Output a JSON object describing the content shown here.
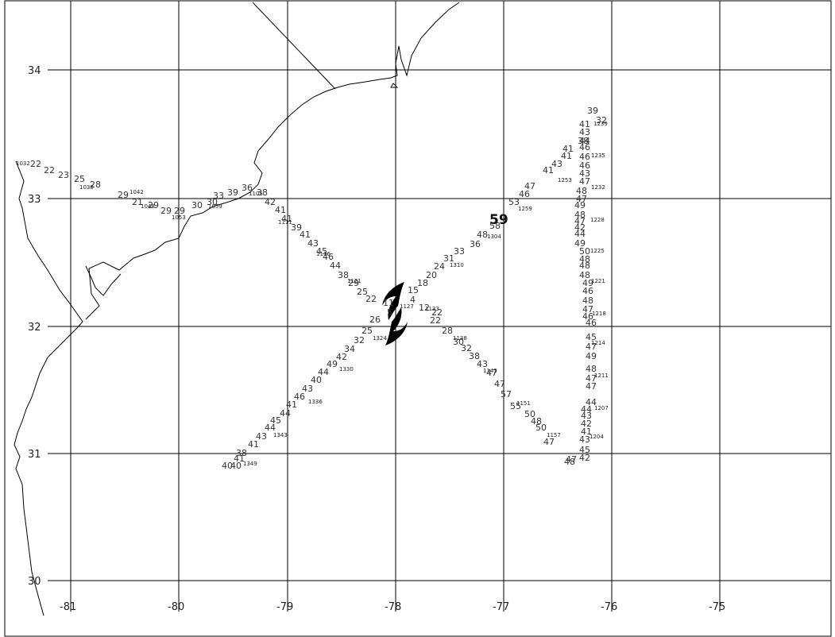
{
  "latitude_labels": [
    "34",
    "33",
    "32",
    "31",
    "30"
  ],
  "longitude_labels": [
    "-81",
    "-80",
    "-79",
    "-78",
    "-77",
    "-76",
    "-75"
  ],
  "storm_symbol": "hurricane-symbol",
  "max_wind": "59",
  "observations": [
    {
      "v": "22"
    },
    {
      "v": "22"
    },
    {
      "v": "23"
    },
    {
      "v": "25"
    },
    {
      "v": "28"
    },
    {
      "v": "29"
    },
    {
      "v": "21"
    },
    {
      "v": "29"
    },
    {
      "v": "29"
    },
    {
      "v": "29"
    },
    {
      "v": "30"
    },
    {
      "v": "30"
    },
    {
      "v": "33"
    },
    {
      "v": "39"
    },
    {
      "v": "36"
    },
    {
      "v": "38"
    },
    {
      "v": "42"
    },
    {
      "v": "41"
    },
    {
      "v": "41"
    },
    {
      "v": "39"
    },
    {
      "v": "41"
    },
    {
      "v": "43"
    },
    {
      "v": "45"
    },
    {
      "v": "46"
    },
    {
      "v": "44"
    },
    {
      "v": "38"
    },
    {
      "v": "29"
    },
    {
      "v": "25"
    },
    {
      "v": "22"
    },
    {
      "v": "15"
    },
    {
      "v": "18"
    },
    {
      "v": "20"
    },
    {
      "v": "24"
    },
    {
      "v": "31"
    },
    {
      "v": "33"
    },
    {
      "v": "36"
    },
    {
      "v": "48"
    },
    {
      "v": "58"
    },
    {
      "v": "53"
    },
    {
      "v": "46"
    },
    {
      "v": "47"
    },
    {
      "v": "41"
    },
    {
      "v": "43"
    },
    {
      "v": "41"
    },
    {
      "v": "41"
    },
    {
      "v": "38"
    },
    {
      "v": "39"
    },
    {
      "v": "32"
    },
    {
      "v": "41"
    },
    {
      "v": "43"
    },
    {
      "v": "44"
    },
    {
      "v": "46"
    },
    {
      "v": "46"
    },
    {
      "v": "46"
    },
    {
      "v": "43"
    },
    {
      "v": "47"
    },
    {
      "v": "48"
    },
    {
      "v": "47"
    },
    {
      "v": "49"
    },
    {
      "v": "48"
    },
    {
      "v": "47"
    },
    {
      "v": "42"
    },
    {
      "v": "44"
    },
    {
      "v": "49"
    },
    {
      "v": "50"
    },
    {
      "v": "48"
    },
    {
      "v": "48"
    },
    {
      "v": "48"
    },
    {
      "v": "49"
    },
    {
      "v": "46"
    },
    {
      "v": "48"
    },
    {
      "v": "47"
    },
    {
      "v": "46"
    },
    {
      "v": "46"
    },
    {
      "v": "45"
    },
    {
      "v": "47"
    },
    {
      "v": "49"
    },
    {
      "v": "48"
    },
    {
      "v": "47"
    },
    {
      "v": "47"
    },
    {
      "v": "44"
    },
    {
      "v": "44"
    },
    {
      "v": "43"
    },
    {
      "v": "42"
    },
    {
      "v": "41"
    },
    {
      "v": "43"
    },
    {
      "v": "45"
    },
    {
      "v": "42"
    },
    {
      "v": "48"
    },
    {
      "v": "47"
    },
    {
      "v": "47"
    },
    {
      "v": "50"
    },
    {
      "v": "48"
    },
    {
      "v": "50"
    },
    {
      "v": "55"
    },
    {
      "v": "57"
    },
    {
      "v": "47"
    },
    {
      "v": "47"
    },
    {
      "v": "43"
    },
    {
      "v": "38"
    },
    {
      "v": "32"
    },
    {
      "v": "30"
    },
    {
      "v": "28"
    },
    {
      "v": "22"
    },
    {
      "v": "22"
    },
    {
      "v": "12"
    },
    {
      "v": "4"
    },
    {
      "v": "26"
    },
    {
      "v": "25"
    },
    {
      "v": "32"
    },
    {
      "v": "34"
    },
    {
      "v": "42"
    },
    {
      "v": "49"
    },
    {
      "v": "44"
    },
    {
      "v": "40"
    },
    {
      "v": "43"
    },
    {
      "v": "46"
    },
    {
      "v": "41"
    },
    {
      "v": "44"
    },
    {
      "v": "45"
    },
    {
      "v": "44"
    },
    {
      "v": "43"
    },
    {
      "v": "41"
    },
    {
      "v": "38"
    },
    {
      "v": "41"
    },
    {
      "v": "40"
    },
    {
      "v": "40"
    },
    {
      "v": "5"
    },
    {
      "v": "11"
    }
  ],
  "time_labels": [
    "1032",
    "1038",
    "1042",
    "1048",
    "1053",
    "1059",
    "1105",
    "1111",
    "1116",
    "1121",
    "1127",
    "1133",
    "1138",
    "1145",
    "1151",
    "1304",
    "1310",
    "1259",
    "1253",
    "1239",
    "1235",
    "1232",
    "1228",
    "1225",
    "1221",
    "1218",
    "1214",
    "1211",
    "1207",
    "1204",
    "1157",
    "1324",
    "1330",
    "1336",
    "1343",
    "1349"
  ]
}
